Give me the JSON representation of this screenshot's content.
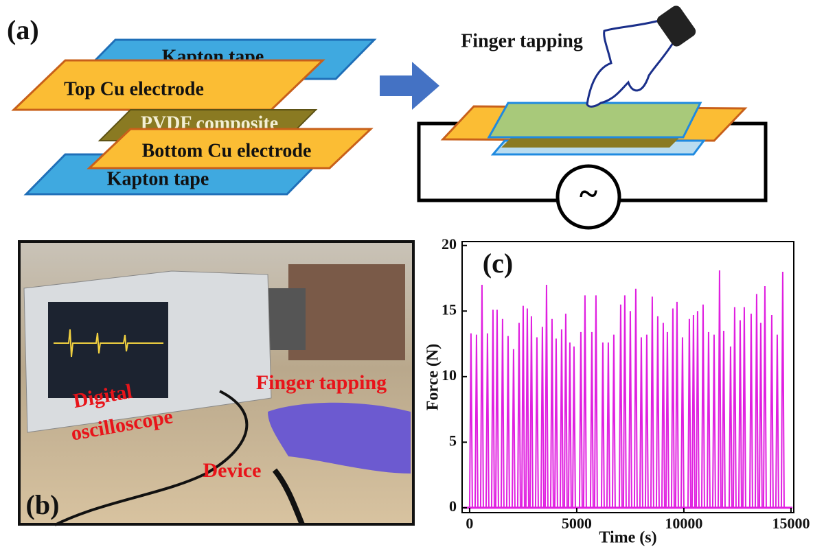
{
  "panels": {
    "a": {
      "label": "(a)",
      "layers": [
        "Kapton tape",
        "Top Cu electrode",
        "PVDF composite",
        "Bottom Cu electrode",
        "Kapton tape"
      ],
      "action": "Finger tapping",
      "source_symbol": "~"
    },
    "b": {
      "label": "(b)",
      "finger": "Finger tapping",
      "scope": [
        "Digital",
        "oscilloscope"
      ],
      "device": "Device"
    },
    "c": {
      "label": "(c)"
    }
  },
  "chart_data": {
    "type": "spike",
    "xlabel": "Time (s)",
    "ylabel": "Force (N)",
    "color": "#e020e0",
    "x": [
      64,
      321,
      577,
      833,
      1090,
      1282,
      1538,
      1795,
      2051,
      2308,
      2500,
      2692,
      2885,
      3141,
      3397,
      3590,
      3846,
      4038,
      4295,
      4487,
      4679,
      4872,
      5192,
      5384,
      5705,
      5897,
      6218,
      6474,
      6731,
      7051,
      7243,
      7500,
      7756,
      8013,
      8269,
      8525,
      8782,
      9038,
      9230,
      9487,
      9679,
      9936,
      10256,
      10448,
      10641,
      10897,
      11154,
      11410,
      11666,
      11859,
      12179,
      12371,
      12628,
      12820,
      13141,
      13397,
      13589,
      13782,
      14102,
      14358,
      14615
    ],
    "values": [
      13.3,
      13.2,
      17.0,
      13.3,
      15.1,
      15.1,
      14.4,
      13.1,
      12.1,
      14.1,
      15.4,
      15.2,
      14.6,
      13.0,
      13.8,
      17.0,
      14.4,
      12.9,
      13.6,
      14.8,
      12.6,
      12.3,
      13.4,
      16.2,
      13.4,
      16.2,
      12.6,
      12.6,
      13.2,
      15.5,
      16.2,
      15.0,
      16.7,
      13.0,
      13.2,
      16.1,
      14.6,
      14.1,
      13.4,
      15.2,
      15.7,
      13.0,
      14.4,
      14.7,
      15.0,
      15.5,
      13.4,
      13.2,
      18.1,
      13.5,
      12.3,
      15.3,
      14.3,
      15.3,
      14.8,
      16.3,
      14.1,
      16.9,
      14.7,
      13.2,
      18.0
    ],
    "xlim": [
      -350,
      15130
    ],
    "ylim": [
      -0.37,
      20.3
    ],
    "xticks": [
      0,
      5000,
      10000,
      15000
    ],
    "yticks": [
      0,
      5,
      10,
      15,
      20
    ]
  }
}
